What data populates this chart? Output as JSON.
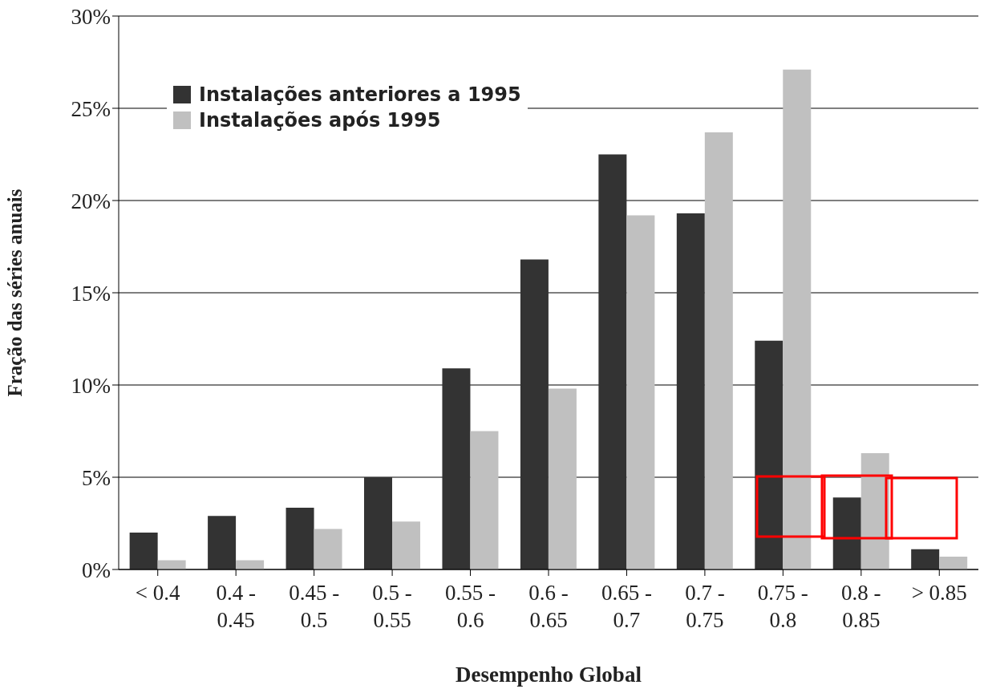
{
  "chart_data": {
    "type": "bar",
    "xlabel": "Desempenho Global",
    "ylabel": "Fração das séries anuais",
    "categories": [
      "< 0.4",
      "0.4 - 0.45",
      "0.45 - 0.5",
      "0.5 - 0.55",
      "0.55 - 0.6",
      "0.6 - 0.65",
      "0.65 - 0.7",
      "0.7 - 0.75",
      "0.75 - 0.8",
      "0.8 - 0.85",
      "> 0.85"
    ],
    "series": [
      {
        "name": "Instalações anteriores a 1995",
        "color": "#333333",
        "values": [
          2.0,
          2.9,
          3.35,
          5.0,
          10.9,
          16.8,
          22.5,
          19.3,
          12.4,
          3.9,
          1.1
        ]
      },
      {
        "name": "Instalações após 1995",
        "color": "#c0c0c0",
        "values": [
          0.5,
          0.5,
          2.2,
          2.6,
          7.5,
          9.8,
          19.2,
          23.7,
          27.1,
          6.3,
          0.7
        ]
      }
    ],
    "ylim": [
      0,
      30
    ],
    "yticks": [
      {
        "value": 0,
        "label": "0%"
      },
      {
        "value": 5,
        "label": "5%"
      },
      {
        "value": 10,
        "label": "10%"
      },
      {
        "value": 15,
        "label": "15%"
      },
      {
        "value": 20,
        "label": "20%"
      },
      {
        "value": 25,
        "label": "25%"
      },
      {
        "value": 30,
        "label": "30%"
      }
    ],
    "grid": "y",
    "legend": "top left"
  }
}
